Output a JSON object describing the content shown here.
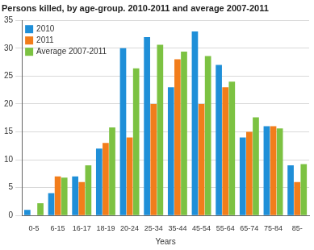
{
  "chart_data": {
    "type": "bar",
    "title": "Persons killed, by age-group. 2010-2011 and average 2007-2011",
    "x_label": "Years",
    "categories": [
      "0-5",
      "6-15",
      "16-17",
      "18-19",
      "20-24",
      "25-34",
      "35-44",
      "45-54",
      "55-64",
      "65-74",
      "75-84",
      "85-"
    ],
    "series": [
      {
        "name": "2010",
        "color": "#1f8fd8",
        "values": [
          1,
          4,
          7,
          12,
          30,
          32,
          23,
          33,
          27,
          14,
          16,
          9
        ]
      },
      {
        "name": "2011",
        "color": "#f27d1b",
        "values": [
          0,
          7,
          6,
          13,
          14,
          20,
          28,
          20,
          23,
          15,
          16,
          6
        ]
      },
      {
        "name": "Average 2007-2011",
        "color": "#7cc242",
        "values": [
          2.2,
          6.8,
          9,
          15.8,
          26.4,
          30.6,
          29.4,
          28.6,
          24,
          17.6,
          15.6,
          9.2
        ]
      }
    ],
    "ylim": [
      0,
      35
    ],
    "yticks": [
      0,
      5,
      10,
      15,
      20,
      25,
      30,
      35
    ],
    "grid": true,
    "legend": "upper left"
  }
}
